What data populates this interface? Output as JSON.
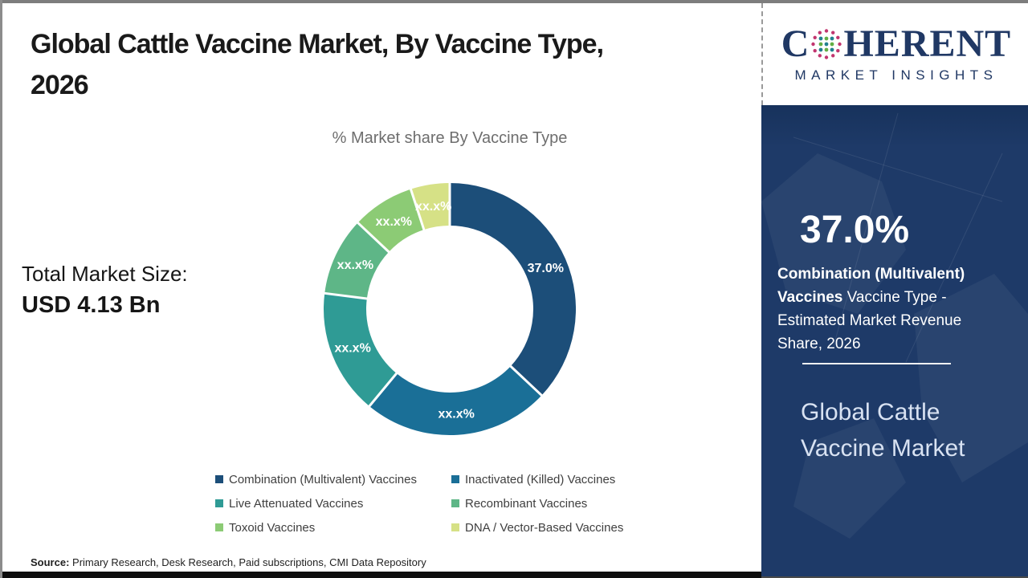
{
  "page": {
    "title_line1": "Global Cattle Vaccine Market, By Vaccine Type,",
    "title_line2": "2026",
    "total_market_label": "Total Market Size:",
    "total_market_value": "USD 4.13 Bn",
    "source_label": "Source:",
    "source_text": " Primary Research, Desk Research, Paid subscriptions, CMI Data Repository"
  },
  "logo": {
    "word_start": "C",
    "word_end": "HERENT",
    "subtitle": "MARKET INSIGHTS",
    "brand_color": "#203864",
    "globe_colors": {
      "pink": "#C2356F",
      "teal": "#22808F",
      "green": "#63AE45"
    }
  },
  "sidebar": {
    "bg_color": "#1E3A68",
    "highlight_value": "37.0%",
    "highlight_bold": "Combination (Multivalent) Vaccines",
    "highlight_rest": " Vaccine Type - Estimated Market Revenue Share, 2026",
    "panel_title": "Global Cattle Vaccine Market"
  },
  "chart_data": {
    "type": "pie",
    "subtype": "donut",
    "title": "% Market share By Vaccine Type",
    "units": "%",
    "start_angle_deg": 0,
    "direction": "clockwise",
    "inner_radius_ratio": 0.66,
    "legend_position": "bottom",
    "series": [
      {
        "name": "Combination (Multivalent) Vaccines",
        "value": 37.0,
        "label": "37.0%",
        "color": "#1C4E79"
      },
      {
        "name": "Inactivated (Killed) Vaccines",
        "value": 24.0,
        "label": "xx.x%",
        "color": "#1A6F97"
      },
      {
        "name": "Live Attenuated Vaccines",
        "value": 16.0,
        "label": "xx.x%",
        "color": "#2F9B95"
      },
      {
        "name": "Recombinant Vaccines",
        "value": 10.0,
        "label": "xx.x%",
        "color": "#5EB687"
      },
      {
        "name": "Toxoid Vaccines",
        "value": 8.0,
        "label": "xx.x%",
        "color": "#8CCB75"
      },
      {
        "name": "DNA / Vector-Based Vaccines",
        "value": 5.0,
        "label": "xx.x%",
        "color": "#D6E186"
      }
    ]
  }
}
